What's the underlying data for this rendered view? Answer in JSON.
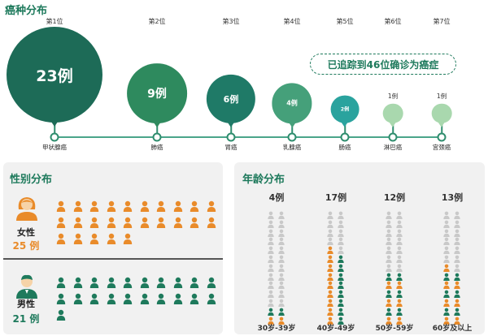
{
  "cancer": {
    "title": "癌种分布",
    "tracked_note": "已追踪到46位确诊为癌症",
    "items": [
      {
        "rank": "第1位",
        "count_label": "23例",
        "name": "甲状腺癌",
        "value": 23,
        "color": "#1d6b57"
      },
      {
        "rank": "第2位",
        "count_label": "9例",
        "name": "肺癌",
        "value": 9,
        "color": "#2e8a5e"
      },
      {
        "rank": "第3位",
        "count_label": "6例",
        "name": "胃癌",
        "value": 6,
        "color": "#1f7a67"
      },
      {
        "rank": "第4位",
        "count_label": "4例",
        "name": "乳腺癌",
        "value": 4,
        "color": "#45a07a"
      },
      {
        "rank": "第5位",
        "count_label": "2例",
        "name": "肠癌",
        "value": 2,
        "color": "#2aa39e"
      },
      {
        "rank": "第6位",
        "count_label": "1例",
        "name": "淋巴癌",
        "value": 1,
        "color": "#a9d8ae"
      },
      {
        "rank": "第7位",
        "count_label": "1例",
        "name": "宫颈癌",
        "value": 1,
        "color": "#a9d8ae"
      }
    ]
  },
  "gender": {
    "title": "性别分布",
    "female": {
      "label": "女性",
      "count_label": "25 例",
      "count": 25,
      "color": "#e98b2a"
    },
    "male": {
      "label": "男性",
      "count_label": "21 例",
      "count": 21,
      "color": "#1e7a5c"
    }
  },
  "age": {
    "title": "年龄分布",
    "total_per_column": 26,
    "groups": [
      {
        "range": "30岁-39岁",
        "count_label": "4例",
        "count": 4
      },
      {
        "range": "40岁-49岁",
        "count_label": "17例",
        "count": 17
      },
      {
        "range": "50岁-59岁",
        "count_label": "12例",
        "count": 12
      },
      {
        "range": "60岁及以上",
        "count_label": "13例",
        "count": 13
      }
    ],
    "colors": {
      "empty": "#c9c9c9",
      "orange": "#e98b2a",
      "green": "#1e7a5c"
    }
  }
}
